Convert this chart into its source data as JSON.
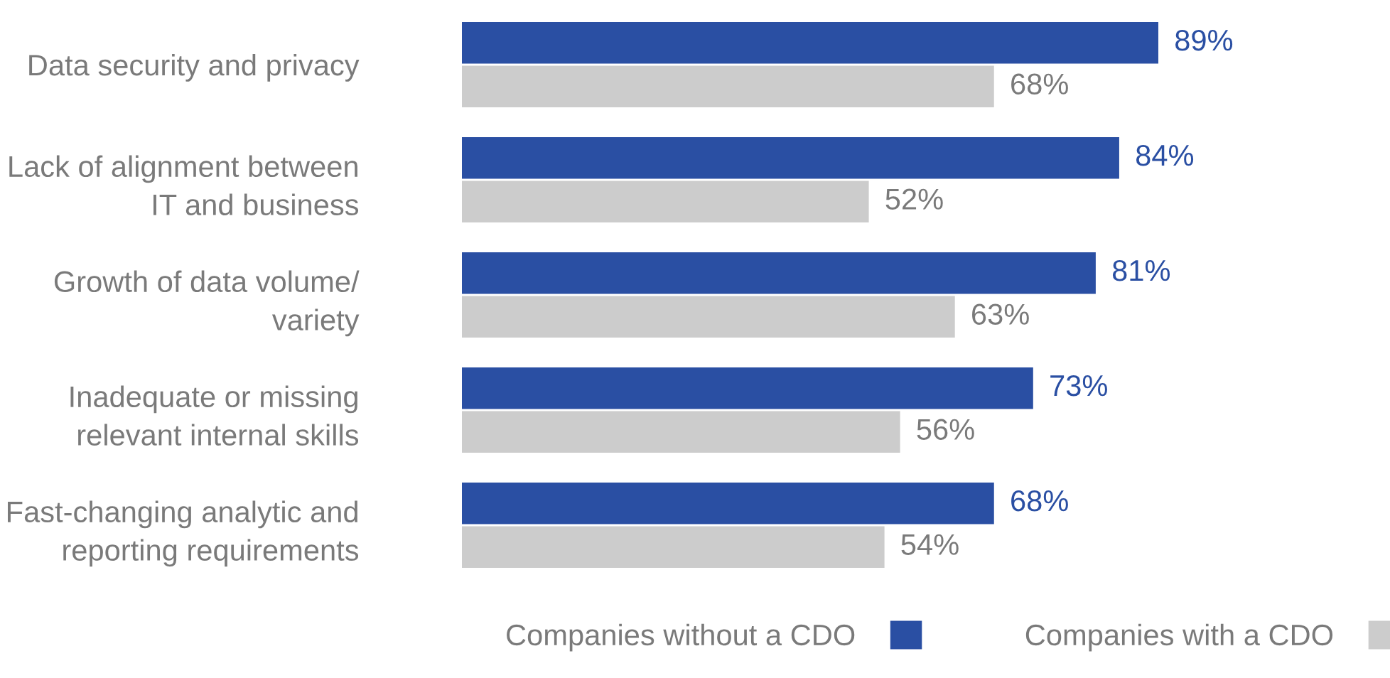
{
  "chart_data": {
    "type": "bar",
    "orientation": "horizontal",
    "relative": false,
    "categories": [
      "Data security and privacy",
      "Lack of alignment between\nIT and business",
      "Growth of data volume/\nvariety",
      "Inadequate or missing\nrelevant internal skills",
      "Fast-changing analytic and\nreporting requirements"
    ],
    "series": [
      {
        "name": "Companies without a CDO",
        "color": "#2a4fa3",
        "values": [
          89,
          84,
          81,
          73,
          68
        ],
        "value_labels": [
          "89%",
          "84%",
          "81%",
          "73%",
          "68%"
        ]
      },
      {
        "name": "Companies with a CDO",
        "color": "#cccccc",
        "values": [
          68,
          52,
          63,
          56,
          54
        ],
        "value_labels": [
          "68%",
          "52%",
          "63%",
          "56%",
          "54%"
        ]
      }
    ],
    "legend": "bottom",
    "grid": false
  }
}
